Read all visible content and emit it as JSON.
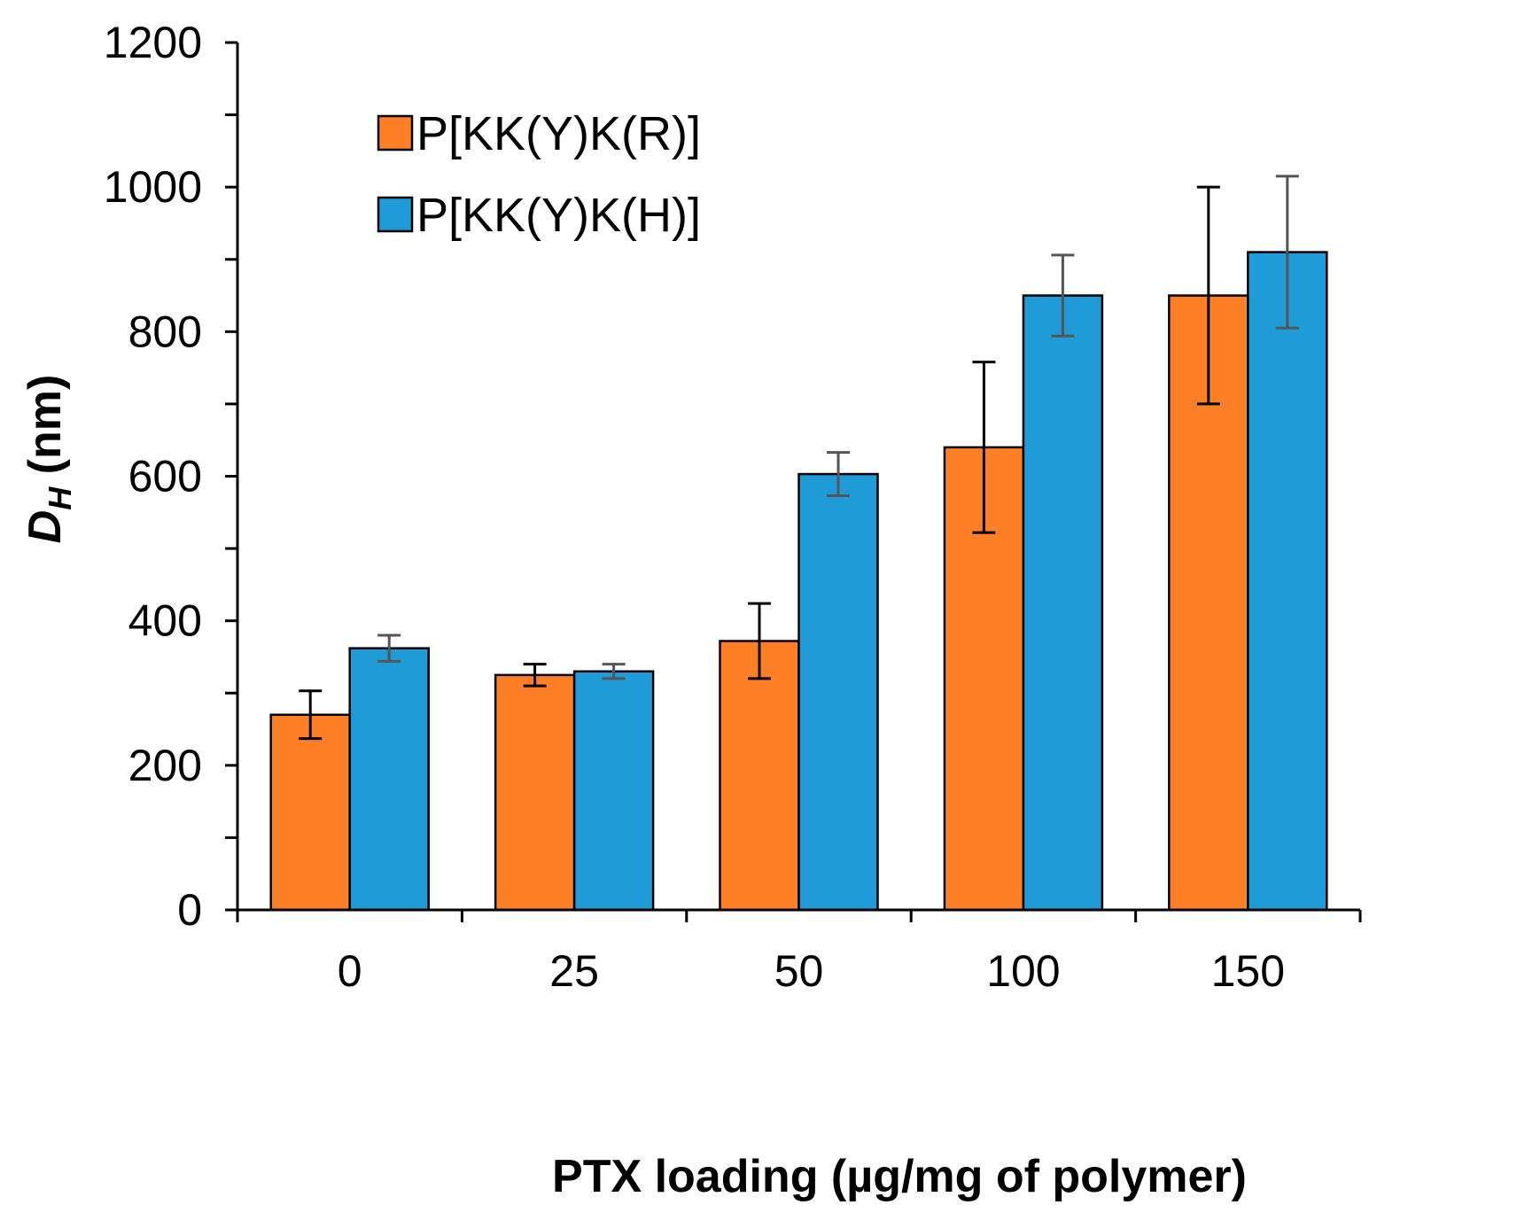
{
  "chart_data": {
    "type": "bar",
    "title": "",
    "xlabel": "PTX loading (µg/mg of polymer)",
    "ylabel": "D",
    "ylabel_subscript": "H",
    "ylabel_unit": " (nm)",
    "categories": [
      "0",
      "25",
      "50",
      "100",
      "150"
    ],
    "ylim": [
      0,
      1200
    ],
    "yticks": [
      0,
      200,
      400,
      600,
      800,
      1000,
      1200
    ],
    "grid": false,
    "legend_position": "top-left",
    "series": [
      {
        "name": "P[KK(Y)K(R)]",
        "color": "#FF7F27",
        "values": [
          270,
          325,
          372,
          640,
          850
        ],
        "errors": [
          33,
          15,
          52,
          118,
          150
        ]
      },
      {
        "name": "P[KK(Y)K(H)]",
        "color": "#1F9BD7",
        "values": [
          362,
          330,
          603,
          850,
          910
        ],
        "errors": [
          18,
          10,
          30,
          56,
          105
        ]
      }
    ]
  }
}
